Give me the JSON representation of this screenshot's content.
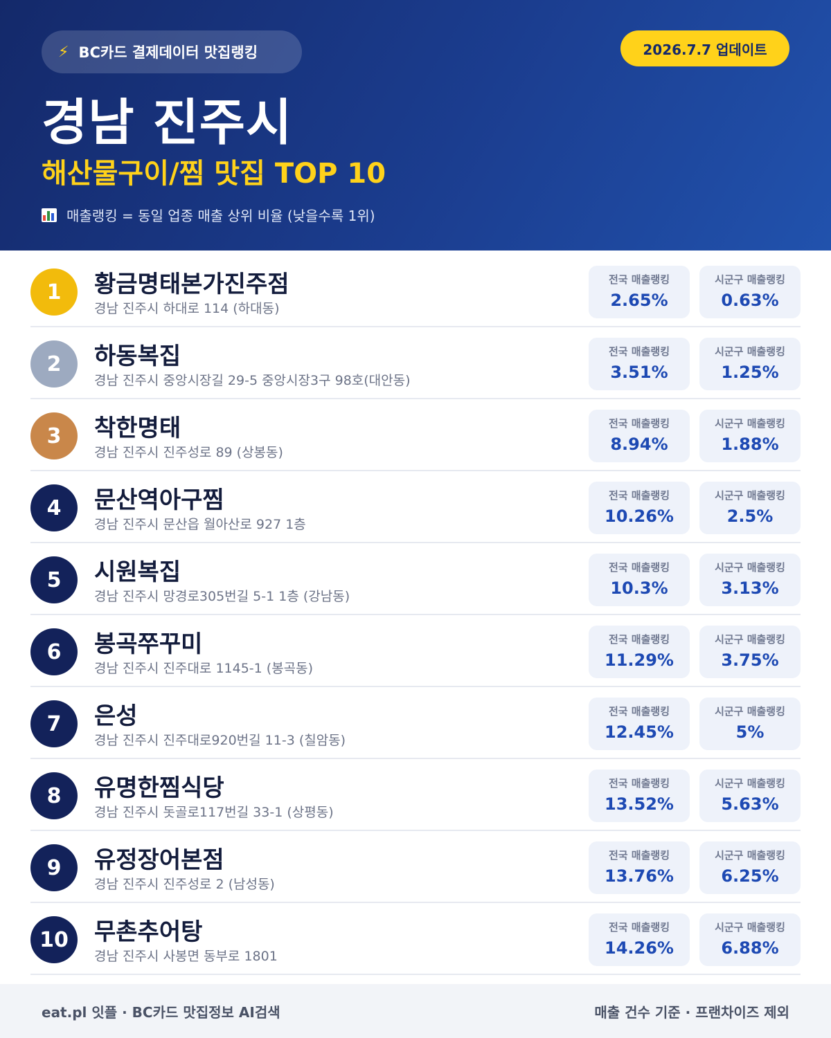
{
  "header": {
    "source_label": "BC카드 결제데이터 맛집랭킹",
    "bolt_icon": "⚡",
    "update_label": "2026.7.7 업데이트",
    "city": "경남 진주시",
    "subtitle": "해산물구이/찜 맛집 TOP 10",
    "legend": "매출랭킹 = 동일 업종 매출 상위 비율 (낮을수록 1위)"
  },
  "stat_labels": {
    "national": "전국 매출랭킹",
    "local": "시군구 매출랭킹"
  },
  "items": [
    {
      "rank": "1",
      "name": "황금명태본가진주점",
      "address": "경남 진주시 하대로 114 (하대동)",
      "national": "2.65%",
      "local": "0.63%"
    },
    {
      "rank": "2",
      "name": "하동복집",
      "address": "경남 진주시 중앙시장길 29-5 중앙시장3구 98호(대안동)",
      "national": "3.51%",
      "local": "1.25%"
    },
    {
      "rank": "3",
      "name": "착한명태",
      "address": "경남 진주시 진주성로 89 (상봉동)",
      "national": "8.94%",
      "local": "1.88%"
    },
    {
      "rank": "4",
      "name": "문산역아구찜",
      "address": "경남 진주시 문산읍 월아산로 927 1층",
      "national": "10.26%",
      "local": "2.5%"
    },
    {
      "rank": "5",
      "name": "시원복집",
      "address": "경남 진주시 망경로305번길 5-1 1층 (강남동)",
      "national": "10.3%",
      "local": "3.13%"
    },
    {
      "rank": "6",
      "name": "봉곡쭈꾸미",
      "address": "경남 진주시 진주대로 1145-1 (봉곡동)",
      "national": "11.29%",
      "local": "3.75%"
    },
    {
      "rank": "7",
      "name": "은성",
      "address": "경남 진주시 진주대로920번길 11-3 (칠암동)",
      "national": "12.45%",
      "local": "5%"
    },
    {
      "rank": "8",
      "name": "유명한찜식당",
      "address": "경남 진주시 돗골로117번길 33-1 (상평동)",
      "national": "13.52%",
      "local": "5.63%"
    },
    {
      "rank": "9",
      "name": "유정장어본점",
      "address": "경남 진주시 진주성로 2 (남성동)",
      "national": "13.76%",
      "local": "6.25%"
    },
    {
      "rank": "10",
      "name": "무촌추어탕",
      "address": "경남 진주시 사봉면 동부로 1801",
      "national": "14.26%",
      "local": "6.88%"
    }
  ],
  "footer": {
    "left": "eat.pl 잇플 · BC카드 맛집정보 AI검색",
    "right": "매출 건수 기준 · 프랜차이즈 제외"
  },
  "colors": {
    "header_start": "#14296a",
    "header_end": "#2152ad",
    "accent_yellow": "#ffd21a",
    "rank_gold": "#f2bb0c",
    "rank_silver": "#9daac0",
    "rank_bronze": "#c9874a",
    "rank_default": "#13225a",
    "value_blue": "#1d49b3"
  }
}
